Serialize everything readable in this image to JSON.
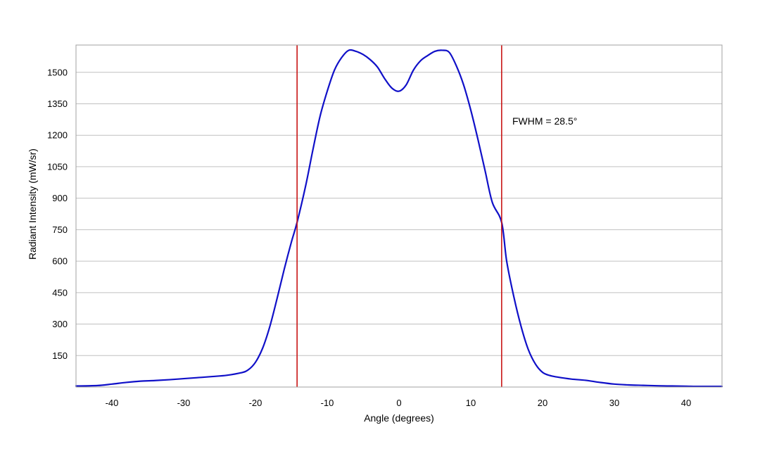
{
  "chart_data": {
    "type": "line",
    "xlabel": "Angle (degrees)",
    "ylabel": "Radiant Intensity (mW/sr)",
    "xlim": [
      -45,
      45
    ],
    "ylim": [
      0,
      1630
    ],
    "xticks": [
      -40,
      -30,
      -20,
      -10,
      0,
      10,
      20,
      30,
      40
    ],
    "yticks": [
      150,
      300,
      450,
      600,
      750,
      900,
      1050,
      1200,
      1350,
      1500
    ],
    "grid": "horizontal",
    "legend": "none",
    "colors": {
      "series": "#1010c8",
      "markers": "#c81414",
      "grid": "#c0c0c0",
      "frame": "#a0a0a0"
    },
    "series": [
      {
        "x": [
          -45,
          -42,
          -40,
          -38,
          -36,
          -34,
          -32,
          -30,
          -28,
          -26,
          -24,
          -22,
          -21,
          -20,
          -19,
          -18,
          -17,
          -16,
          -15,
          -14.2,
          -13,
          -12,
          -11,
          -10,
          -9,
          -8,
          -7,
          -6,
          -5,
          -4,
          -3,
          -2,
          -1,
          0,
          1,
          2,
          3,
          4,
          5,
          6,
          7,
          8,
          9,
          10,
          11,
          12,
          13,
          14.3,
          15,
          16,
          17,
          18,
          19,
          20,
          21,
          22,
          24,
          26,
          28,
          30,
          32,
          34,
          36,
          38,
          40,
          42,
          45
        ],
        "y": [
          5,
          7,
          14,
          22,
          28,
          31,
          35,
          40,
          45,
          50,
          56,
          68,
          82,
          118,
          185,
          288,
          420,
          560,
          690,
          785,
          960,
          1130,
          1290,
          1410,
          1510,
          1570,
          1605,
          1600,
          1585,
          1560,
          1525,
          1470,
          1425,
          1410,
          1440,
          1510,
          1555,
          1580,
          1600,
          1605,
          1595,
          1530,
          1440,
          1320,
          1180,
          1030,
          880,
          785,
          600,
          430,
          290,
          180,
          110,
          70,
          55,
          48,
          38,
          32,
          22,
          14,
          10,
          8,
          6,
          5,
          4,
          3,
          3
        ]
      }
    ],
    "vlines": [
      -14.2,
      14.3
    ],
    "annotation": "FWHM = 28.5°"
  }
}
